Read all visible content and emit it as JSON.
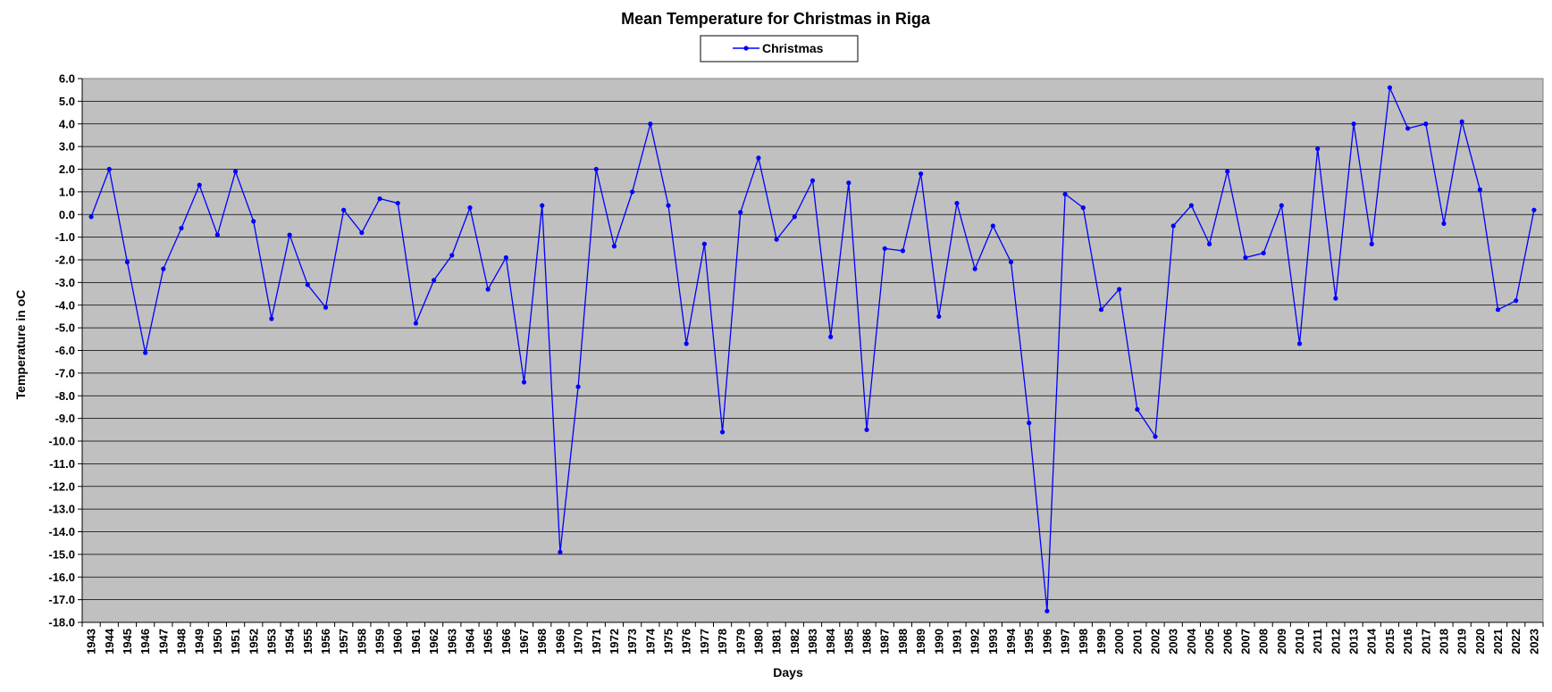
{
  "chart_data": {
    "type": "line",
    "title": "Mean Temperature for Christmas in Riga",
    "xlabel": "Days",
    "ylabel": "Temperature in oC",
    "ylim": [
      -18,
      6
    ],
    "y_ticks": [
      "6.0",
      "5.0",
      "4.0",
      "3.0",
      "2.0",
      "1.0",
      "0.0",
      "-1.0",
      "-2.0",
      "-3.0",
      "-4.0",
      "-5.0",
      "-6.0",
      "-7.0",
      "-8.0",
      "-9.0",
      "-10.0",
      "-11.0",
      "-12.0",
      "-13.0",
      "-14.0",
      "-15.0",
      "-16.0",
      "-17.0",
      "-18.0"
    ],
    "grid": true,
    "legend_position": "top-center",
    "background_color": "#C0C0C0",
    "line_color": "#0000FF",
    "categories": [
      "1943",
      "1944",
      "1945",
      "1946",
      "1947",
      "1948",
      "1949",
      "1950",
      "1951",
      "1952",
      "1953",
      "1954",
      "1955",
      "1956",
      "1957",
      "1958",
      "1959",
      "1960",
      "1961",
      "1962",
      "1963",
      "1964",
      "1965",
      "1966",
      "1967",
      "1968",
      "1969",
      "1970",
      "1971",
      "1972",
      "1973",
      "1974",
      "1975",
      "1976",
      "1977",
      "1978",
      "1979",
      "1980",
      "1981",
      "1982",
      "1983",
      "1984",
      "1985",
      "1986",
      "1987",
      "1988",
      "1989",
      "1990",
      "1991",
      "1992",
      "1993",
      "1994",
      "1995",
      "1996",
      "1997",
      "1998",
      "1999",
      "2000",
      "2001",
      "2002",
      "2003",
      "2004",
      "2005",
      "2006",
      "2007",
      "2008",
      "2009",
      "2010",
      "2011",
      "2012",
      "2013",
      "2014",
      "2015",
      "2016",
      "2017",
      "2018",
      "2019",
      "2020",
      "2021",
      "2022",
      "2023"
    ],
    "series": [
      {
        "name": "Christmas",
        "values": [
          -0.1,
          2.0,
          -2.1,
          -6.1,
          -2.4,
          -0.6,
          1.3,
          -0.9,
          1.9,
          -0.3,
          -4.6,
          -0.9,
          -3.1,
          -4.1,
          0.2,
          -0.8,
          0.7,
          0.5,
          -4.8,
          -2.9,
          -1.8,
          0.3,
          -3.3,
          -1.9,
          -7.4,
          0.4,
          -14.9,
          -7.6,
          2.0,
          -1.4,
          1.0,
          4.0,
          0.4,
          -5.7,
          -1.3,
          -9.6,
          0.1,
          2.5,
          -1.1,
          -0.1,
          1.5,
          -5.4,
          1.4,
          -9.5,
          -1.5,
          -1.6,
          1.8,
          -4.5,
          0.5,
          -2.4,
          -0.5,
          -2.1,
          -9.2,
          -17.5,
          0.9,
          0.3,
          -4.2,
          -3.3,
          -8.6,
          -9.8,
          -0.5,
          0.4,
          -1.3,
          1.9,
          -1.9,
          -1.7,
          0.4,
          -5.7,
          2.9,
          -3.7,
          4.0,
          -1.3,
          5.6,
          3.8,
          4.0,
          -0.4,
          4.1,
          1.1,
          -4.2,
          -3.8,
          0.2
        ]
      }
    ]
  }
}
